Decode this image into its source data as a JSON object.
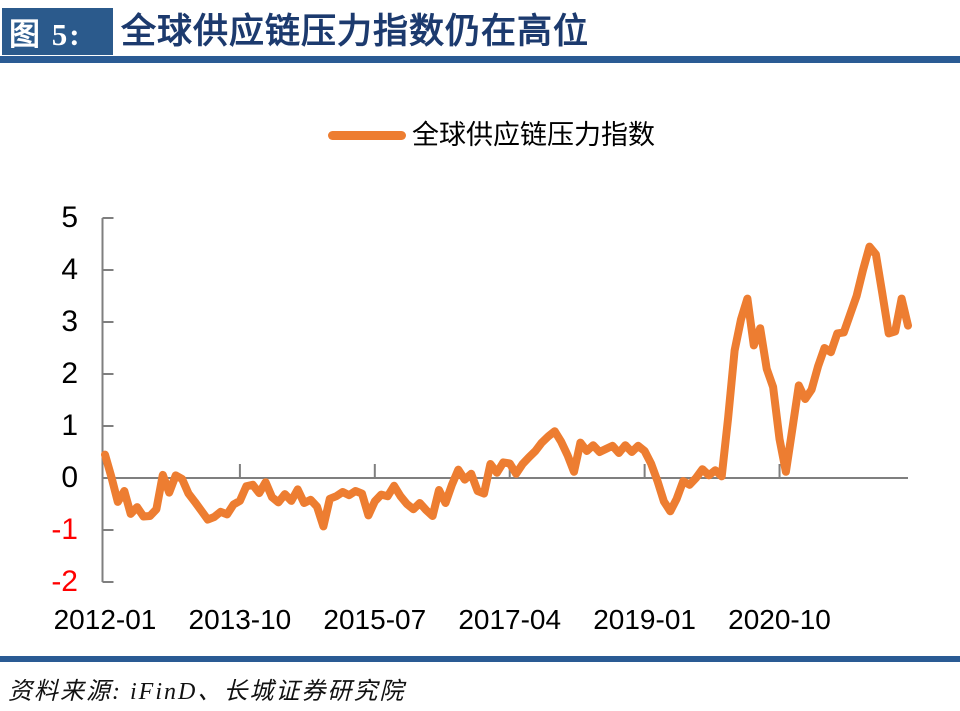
{
  "figure": {
    "badge_label": "图 5:",
    "title": "全球供应链压力指数仍在高位",
    "source_note": "资料来源: iFinD、长城证券研究院"
  },
  "legend": {
    "label": "全球供应链压力指数"
  },
  "colors": {
    "badge_blue": "#2B5A8C",
    "rule_blue": "#2A5B94",
    "title_navy": "#1C3A6E",
    "series_orange": "#ED7D31",
    "axis_gray": "#7F7F7F",
    "tick_label_black": "#000000",
    "negative_tick_red": "#FF0000"
  },
  "chart_data": {
    "type": "line",
    "title": "全球供应链压力指数",
    "xlabel": "",
    "ylabel": "",
    "x_start": "2012-01",
    "x_frequency": "monthly",
    "x_tick_labels": [
      "2012-01",
      "2013-10",
      "2015-07",
      "2017-04",
      "2019-01",
      "2020-10"
    ],
    "x_tick_interval_months": 21,
    "y_ticks": [
      5,
      4,
      3,
      2,
      1,
      0,
      -1,
      -2
    ],
    "ylim": [
      -2,
      5
    ],
    "grid": "zero-line-only",
    "legend_position": "top-center",
    "series": [
      {
        "name": "全球供应链压力指数",
        "values": [
          0.45,
          0.02,
          -0.46,
          -0.25,
          -0.69,
          -0.56,
          -0.74,
          -0.73,
          -0.6,
          0.06,
          -0.28,
          0.05,
          -0.02,
          -0.3,
          -0.46,
          -0.63,
          -0.8,
          -0.75,
          -0.65,
          -0.7,
          -0.51,
          -0.44,
          -0.16,
          -0.13,
          -0.29,
          -0.08,
          -0.37,
          -0.47,
          -0.31,
          -0.44,
          -0.22,
          -0.48,
          -0.42,
          -0.55,
          -0.93,
          -0.4,
          -0.35,
          -0.27,
          -0.33,
          -0.25,
          -0.3,
          -0.72,
          -0.45,
          -0.32,
          -0.35,
          -0.15,
          -0.35,
          -0.5,
          -0.6,
          -0.48,
          -0.62,
          -0.73,
          -0.23,
          -0.48,
          -0.13,
          0.16,
          -0.03,
          0.08,
          -0.25,
          -0.3,
          0.27,
          0.1,
          0.3,
          0.28,
          0.08,
          0.27,
          0.4,
          0.52,
          0.68,
          0.8,
          0.9,
          0.7,
          0.44,
          0.12,
          0.68,
          0.52,
          0.63,
          0.5,
          0.56,
          0.62,
          0.48,
          0.63,
          0.5,
          0.62,
          0.52,
          0.28,
          -0.06,
          -0.45,
          -0.64,
          -0.4,
          -0.06,
          -0.13,
          0.0,
          0.17,
          0.05,
          0.15,
          0.03,
          1.15,
          2.45,
          3.05,
          3.45,
          2.55,
          2.88,
          2.1,
          1.75,
          0.75,
          0.12,
          0.95,
          1.78,
          1.52,
          1.7,
          2.15,
          2.5,
          2.42,
          2.78,
          2.8,
          3.15,
          3.5,
          4.0,
          4.45,
          4.3,
          3.55,
          2.78,
          2.82,
          3.45,
          2.93
        ]
      }
    ]
  }
}
